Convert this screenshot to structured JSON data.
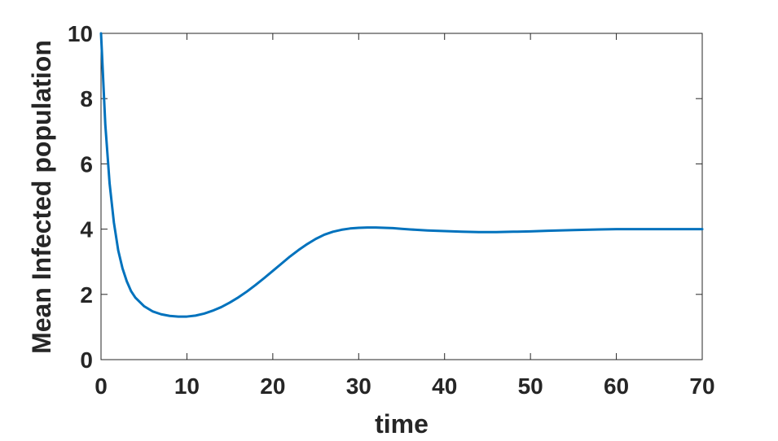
{
  "chart_data": {
    "type": "line",
    "title": "",
    "xlabel": "time",
    "ylabel": "Mean Infected population",
    "xlim": [
      0,
      70
    ],
    "ylim": [
      0,
      10
    ],
    "xticks": [
      "0",
      "10",
      "20",
      "30",
      "40",
      "50",
      "60",
      "70"
    ],
    "yticks": [
      "0",
      "2",
      "4",
      "6",
      "8",
      "10"
    ],
    "grid": false,
    "line_color": "#0072BD",
    "series": [
      {
        "x": [
          0,
          0.5,
          1,
          1.5,
          2,
          2.5,
          3,
          3.5,
          4,
          5,
          6,
          7,
          8,
          9,
          10,
          11,
          12,
          13,
          14,
          15,
          16,
          17,
          18,
          19,
          20,
          21,
          22,
          23,
          24,
          25,
          26,
          27,
          28,
          29,
          30,
          31,
          32,
          33,
          34,
          35,
          36,
          38,
          40,
          42,
          44,
          46,
          48,
          50,
          52,
          55,
          58,
          60,
          62,
          65,
          68,
          70
        ],
        "y": [
          10.0,
          7.2,
          5.4,
          4.2,
          3.35,
          2.8,
          2.4,
          2.1,
          1.9,
          1.64,
          1.48,
          1.39,
          1.34,
          1.32,
          1.32,
          1.35,
          1.41,
          1.5,
          1.61,
          1.75,
          1.91,
          2.09,
          2.29,
          2.5,
          2.72,
          2.94,
          3.16,
          3.36,
          3.54,
          3.7,
          3.83,
          3.92,
          3.98,
          4.02,
          4.04,
          4.05,
          4.05,
          4.04,
          4.03,
          4.01,
          3.99,
          3.96,
          3.94,
          3.92,
          3.91,
          3.91,
          3.92,
          3.93,
          3.95,
          3.97,
          3.99,
          4.0,
          4.0,
          4.0,
          4.0,
          4.0
        ]
      }
    ]
  }
}
